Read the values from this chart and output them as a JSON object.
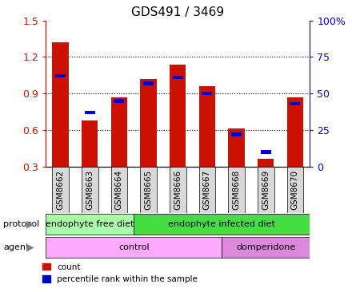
{
  "title": "GDS491 / 3469",
  "samples": [
    "GSM8662",
    "GSM8663",
    "GSM8664",
    "GSM8665",
    "GSM8666",
    "GSM8667",
    "GSM8668",
    "GSM8669",
    "GSM8670"
  ],
  "counts": [
    1.32,
    0.68,
    0.87,
    1.02,
    1.14,
    0.96,
    0.61,
    0.36,
    0.87
  ],
  "percentiles": [
    62,
    37,
    45,
    57,
    61,
    50,
    22,
    10,
    43
  ],
  "ylim_left": [
    0.3,
    1.5
  ],
  "ylim_right": [
    0,
    100
  ],
  "yticks_left": [
    0.3,
    0.6,
    0.9,
    1.2,
    1.5
  ],
  "yticks_right": [
    0,
    25,
    50,
    75,
    100
  ],
  "bar_color": "#cc1100",
  "percentile_color": "#0000cc",
  "bar_width": 0.55,
  "protocol_groups": [
    {
      "label": "endophyte free diet",
      "start": 0,
      "end": 3,
      "color": "#aaffaa"
    },
    {
      "label": "endophyte infected diet",
      "start": 3,
      "end": 9,
      "color": "#44dd44"
    }
  ],
  "agent_groups": [
    {
      "label": "control",
      "start": 0,
      "end": 6,
      "color": "#ffaaff"
    },
    {
      "label": "domperidone",
      "start": 6,
      "end": 9,
      "color": "#dd88dd"
    }
  ],
  "legend_count_label": "count",
  "legend_percentile_label": "percentile rank within the sample",
  "protocol_label": "protocol",
  "agent_label": "agent"
}
